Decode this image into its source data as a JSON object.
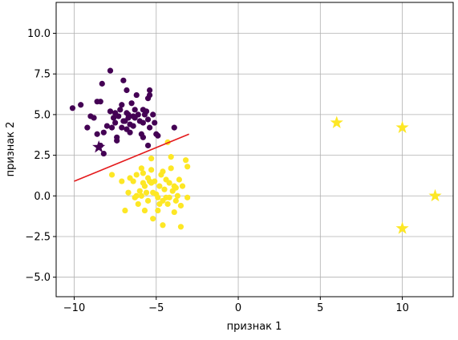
{
  "chart_data": {
    "type": "scatter",
    "xlabel": "признак 1",
    "ylabel": "признак 2",
    "xlim": [
      -11.1,
      13.1
    ],
    "ylim": [
      -6.2,
      11.9
    ],
    "xticks": [
      -10,
      -5,
      0,
      5,
      10
    ],
    "xtick_labels": [
      "−10",
      "−5",
      "0",
      "5",
      "10"
    ],
    "yticks": [
      -5.0,
      -2.5,
      0.0,
      2.5,
      5.0,
      7.5,
      10.0
    ],
    "ytick_labels": [
      "−5.0",
      "−2.5",
      "0.0",
      "2.5",
      "5.0",
      "7.5",
      "10.0"
    ],
    "grid": true,
    "colors": {
      "class0": "#440154",
      "class1": "#fde725",
      "line": "#e41a1c",
      "grid": "#b0b0b0"
    },
    "series": [
      {
        "class": 0,
        "marker": "circle",
        "points": [
          [
            -10.1,
            5.4
          ],
          [
            -9.6,
            5.6
          ],
          [
            -9.2,
            4.2
          ],
          [
            -9.0,
            4.9
          ],
          [
            -8.8,
            4.8
          ],
          [
            -8.6,
            5.8
          ],
          [
            -8.4,
            5.8
          ],
          [
            -8.3,
            6.9
          ],
          [
            -8.6,
            3.8
          ],
          [
            -8.4,
            3.1
          ],
          [
            -8.2,
            3.9
          ],
          [
            -8.2,
            2.6
          ],
          [
            -8.0,
            4.3
          ],
          [
            -7.8,
            7.7
          ],
          [
            -7.8,
            5.2
          ],
          [
            -7.7,
            4.2
          ],
          [
            -7.6,
            4.8
          ],
          [
            -7.5,
            5.1
          ],
          [
            -7.5,
            4.5
          ],
          [
            -7.4,
            3.6
          ],
          [
            -7.4,
            3.4
          ],
          [
            -7.3,
            4.9
          ],
          [
            -7.2,
            5.3
          ],
          [
            -7.1,
            4.2
          ],
          [
            -7.1,
            5.6
          ],
          [
            -7.0,
            7.1
          ],
          [
            -6.9,
            4.6
          ],
          [
            -6.8,
            6.5
          ],
          [
            -6.8,
            4.1
          ],
          [
            -6.7,
            5.0
          ],
          [
            -6.7,
            4.8
          ],
          [
            -6.6,
            3.9
          ],
          [
            -6.6,
            4.4
          ],
          [
            -6.5,
            5.7
          ],
          [
            -6.4,
            4.3
          ],
          [
            -6.3,
            5.3
          ],
          [
            -6.3,
            4.8
          ],
          [
            -6.2,
            6.2
          ],
          [
            -6.1,
            5.0
          ],
          [
            -6.0,
            4.6
          ],
          [
            -5.9,
            3.8
          ],
          [
            -5.8,
            4.5
          ],
          [
            -5.8,
            5.3
          ],
          [
            -5.8,
            3.6
          ],
          [
            -5.7,
            5.0
          ],
          [
            -5.6,
            5.2
          ],
          [
            -5.5,
            4.7
          ],
          [
            -5.5,
            6.0
          ],
          [
            -5.4,
            6.2
          ],
          [
            -5.4,
            6.5
          ],
          [
            -5.4,
            4.2
          ],
          [
            -5.5,
            3.1
          ],
          [
            -5.2,
            5.0
          ],
          [
            -5.1,
            4.5
          ],
          [
            -5.0,
            3.8
          ],
          [
            -4.9,
            3.7
          ],
          [
            -3.9,
            4.2
          ],
          [
            -6.4,
            4.9
          ],
          [
            -6.8,
            5.1
          ],
          [
            -7.0,
            4.6
          ]
        ]
      },
      {
        "class": 1,
        "marker": "circle",
        "points": [
          [
            -7.7,
            1.3
          ],
          [
            -7.1,
            0.9
          ],
          [
            -6.9,
            -0.9
          ],
          [
            -6.6,
            1.1
          ],
          [
            -6.4,
            0.9
          ],
          [
            -6.3,
            -0.1
          ],
          [
            -6.2,
            0.0
          ],
          [
            -6.1,
            -0.5
          ],
          [
            -6.0,
            0.3
          ],
          [
            -5.9,
            1.7
          ],
          [
            -5.8,
            0.8
          ],
          [
            -5.8,
            1.4
          ],
          [
            -5.7,
            0.6
          ],
          [
            -5.7,
            -0.9
          ],
          [
            -5.6,
            0.2
          ],
          [
            -5.5,
            1.1
          ],
          [
            -5.5,
            -0.3
          ],
          [
            -5.4,
            0.9
          ],
          [
            -5.3,
            2.3
          ],
          [
            -5.3,
            1.6
          ],
          [
            -5.2,
            0.2
          ],
          [
            -5.2,
            -1.4
          ],
          [
            -5.1,
            0.9
          ],
          [
            -5.0,
            0.1
          ],
          [
            -4.9,
            -0.1
          ],
          [
            -4.9,
            -0.9
          ],
          [
            -4.8,
            0.6
          ],
          [
            -4.7,
            1.3
          ],
          [
            -4.6,
            -0.3
          ],
          [
            -4.6,
            -1.8
          ],
          [
            -4.5,
            0.4
          ],
          [
            -4.4,
            1.0
          ],
          [
            -4.3,
            -0.5
          ],
          [
            -4.2,
            0.8
          ],
          [
            -4.2,
            -0.1
          ],
          [
            -4.1,
            1.7
          ],
          [
            -4.1,
            2.4
          ],
          [
            -4.0,
            0.3
          ],
          [
            -3.9,
            -1.0
          ],
          [
            -3.9,
            0.6
          ],
          [
            -3.8,
            -0.3
          ],
          [
            -3.7,
            0.0
          ],
          [
            -3.6,
            1.0
          ],
          [
            -3.5,
            -0.6
          ],
          [
            -3.5,
            -1.9
          ],
          [
            -3.4,
            0.6
          ],
          [
            -3.2,
            2.2
          ],
          [
            -3.1,
            -0.1
          ],
          [
            -3.1,
            1.8
          ],
          [
            -4.3,
            3.3
          ],
          [
            -6.7,
            0.2
          ],
          [
            -6.2,
            1.3
          ],
          [
            -5.3,
            0.8
          ],
          [
            -4.8,
            -0.5
          ],
          [
            -4.4,
            -0.1
          ],
          [
            -3.8,
            0.5
          ],
          [
            -4.6,
            1.5
          ],
          [
            -5.9,
            0.0
          ]
        ]
      },
      {
        "class": 0,
        "marker": "star",
        "points": [
          [
            -8.5,
            3.0
          ]
        ]
      },
      {
        "class": 1,
        "marker": "star",
        "points": [
          [
            6.0,
            4.5
          ],
          [
            10.0,
            4.2
          ],
          [
            12.0,
            0.0
          ],
          [
            10.0,
            -2.0
          ]
        ]
      }
    ],
    "line": {
      "x": [
        -10.0,
        -3.0
      ],
      "y": [
        0.9,
        3.8
      ]
    }
  }
}
